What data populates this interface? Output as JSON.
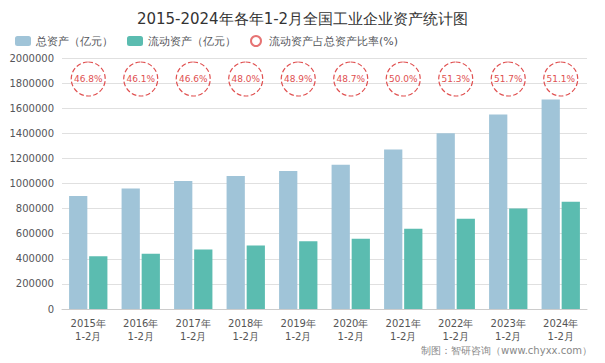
{
  "chart_data": {
    "type": "bar",
    "title": "2015-2024年各年1-2月全国工业企业资产统计图",
    "categories": [
      "2015年\n1-2月",
      "2016年\n1-2月",
      "2017年\n1-2月",
      "2018年\n1-2月",
      "2019年\n1-2月",
      "2020年\n1-2月",
      "2021年\n1-2月",
      "2022年\n1-2月",
      "2023年\n1-2月",
      "2024年\n1-2月"
    ],
    "series": [
      {
        "name": "总资产（亿元）",
        "color": "#a0c4d8",
        "values": [
          900000,
          960000,
          1020000,
          1060000,
          1100000,
          1150000,
          1270000,
          1400000,
          1550000,
          1670000
        ]
      },
      {
        "name": "流动资产（亿元）",
        "color": "#5bbcb0",
        "values": [
          420000,
          440000,
          475000,
          505000,
          540000,
          560000,
          640000,
          720000,
          800000,
          855000
        ]
      }
    ],
    "ratio_labels": {
      "name": "流动资产占总资产比率(%)",
      "color": "#e05050",
      "marker": "circle",
      "line_style": "dashed",
      "labels": [
        "46.8%",
        "46.1%",
        "46.6%",
        "48.0%",
        "48.9%",
        "48.7%",
        "50.0%",
        "51.3%",
        "51.7%",
        "51.1%"
      ]
    },
    "ylim": [
      0,
      2000000
    ],
    "yticks": [
      0,
      200000,
      400000,
      600000,
      800000,
      1000000,
      1200000,
      1400000,
      1600000,
      1800000,
      2000000
    ],
    "grid": true,
    "legend": "upper left",
    "footer": "制图：智研咨询（www.chyxx.com）"
  }
}
